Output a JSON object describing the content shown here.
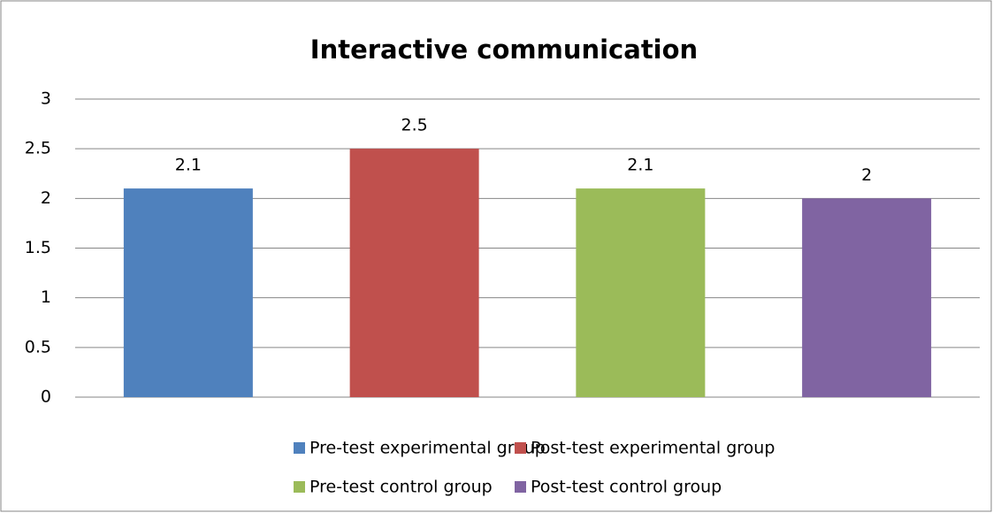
{
  "chart_data": {
    "type": "bar",
    "title": "Interactive communication",
    "series": [
      {
        "name": "Pre-test experimental group",
        "color": "#4f81bd",
        "values": [
          2.1
        ]
      },
      {
        "name": "Post-test experimental group",
        "color": "#c0504d",
        "values": [
          2.5
        ]
      },
      {
        "name": "Pre-test control group",
        "color": "#9bbb59",
        "values": [
          2.1
        ]
      },
      {
        "name": "Post-test control group",
        "color": "#8064a2",
        "values": [
          2
        ]
      }
    ],
    "ylim": [
      0,
      3
    ],
    "yticks": [
      0,
      0.5,
      1,
      1.5,
      2,
      2.5,
      3
    ],
    "grid": true,
    "legend": "bottom"
  }
}
